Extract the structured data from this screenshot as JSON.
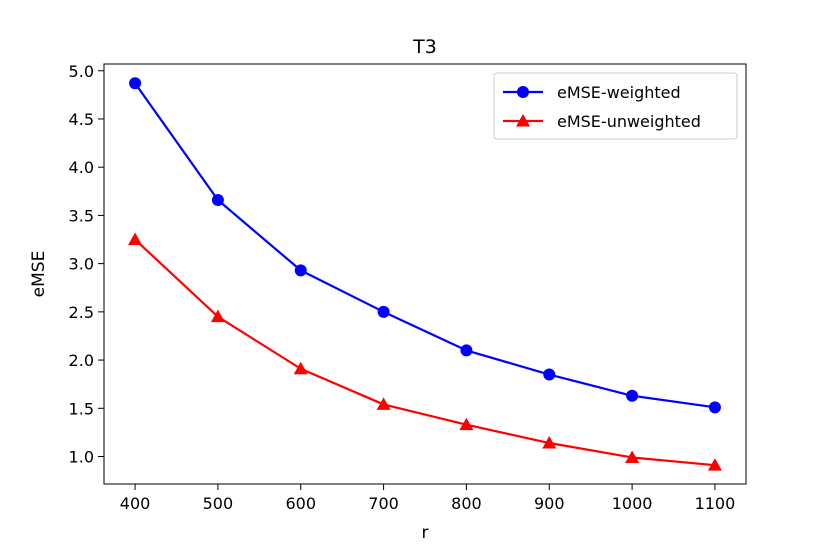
{
  "chart_data": {
    "type": "line",
    "title": "T3",
    "xlabel": "r",
    "ylabel": "eMSE",
    "x": [
      400,
      500,
      600,
      700,
      800,
      900,
      1000,
      1100
    ],
    "xticks": [
      "400",
      "500",
      "600",
      "700",
      "800",
      "900",
      "1000",
      "1100"
    ],
    "yticks": [
      "1.0",
      "1.5",
      "2.0",
      "2.5",
      "3.0",
      "3.5",
      "4.0",
      "4.5",
      "5.0"
    ],
    "xlim": [
      362.5,
      1137.5
    ],
    "ylim": [
      0.715,
      5.07
    ],
    "grid": false,
    "legend_position": "top-right",
    "series": [
      {
        "name": "eMSE-weighted",
        "color": "#0000ff",
        "marker": "circle",
        "values": [
          4.87,
          3.66,
          2.93,
          2.5,
          2.1,
          1.85,
          1.63,
          1.51
        ]
      },
      {
        "name": "eMSE-unweighted",
        "color": "#ff0000",
        "marker": "triangle",
        "values": [
          3.25,
          2.45,
          1.91,
          1.54,
          1.33,
          1.14,
          0.99,
          0.91
        ]
      }
    ]
  }
}
